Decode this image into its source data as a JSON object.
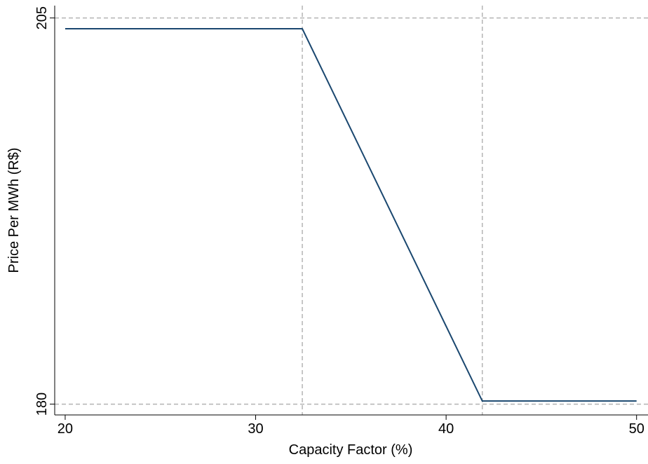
{
  "chart_data": {
    "type": "line",
    "x_label": "Capacity Factor (%)",
    "y_label": "Price Per MWh (R$)",
    "x": [
      20,
      32.45,
      41.9,
      50
    ],
    "series": [
      {
        "color": "#1a476f",
        "values": [
          204.3,
          204.3,
          180.2,
          180.2
        ]
      }
    ],
    "xlim": [
      19.45,
      50.6
    ],
    "ylim": [
      179.3,
      205.8
    ],
    "xticks": [
      20,
      30,
      40,
      50
    ],
    "yticks": [
      180,
      205
    ],
    "grid": true,
    "xlines": [
      32.45,
      41.9
    ]
  }
}
